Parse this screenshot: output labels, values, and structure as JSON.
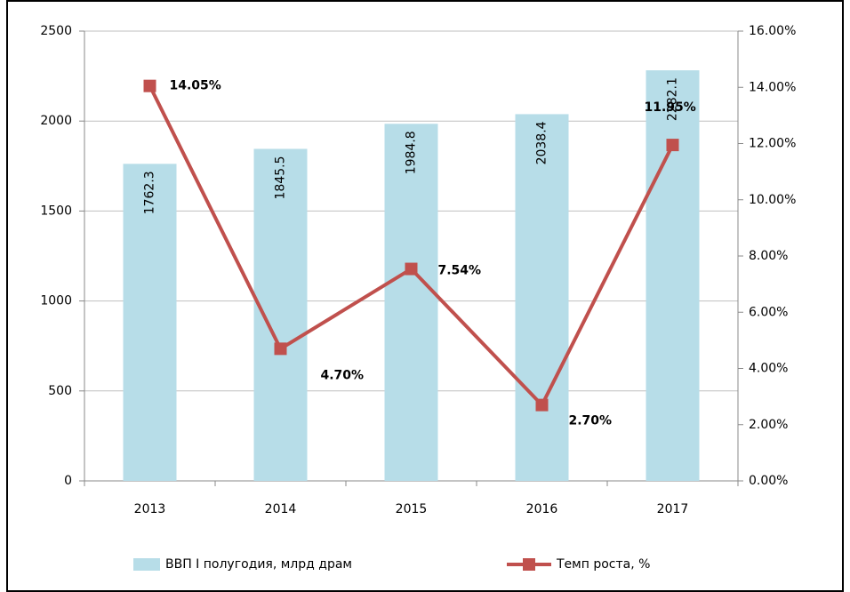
{
  "chart_data": {
    "type": "bar-line",
    "categories": [
      "2013",
      "2014",
      "2015",
      "2016",
      "2017"
    ],
    "series": [
      {
        "name": "ВВП I полугодия, млрд драм",
        "type": "bar",
        "color": "#b7dde8",
        "values": [
          1762.3,
          1845.5,
          1984.8,
          2038.4,
          2282.1
        ]
      },
      {
        "name": "Темп роста, %",
        "type": "line",
        "axis": "y2",
        "color": "#c0504d",
        "values": [
          14.05,
          4.7,
          7.54,
          2.7,
          11.95
        ],
        "value_labels": [
          "14.05%",
          "4.70%",
          "7.54%",
          "2.70%",
          "11.95%"
        ]
      }
    ],
    "ylim": [
      0,
      2500
    ],
    "yticks": [
      0,
      500,
      1000,
      1500,
      2000,
      2500
    ],
    "y2lim": [
      0,
      16
    ],
    "y2ticks": [
      {
        "value": 0,
        "label": "0.00%"
      },
      {
        "value": 2,
        "label": "2.00%"
      },
      {
        "value": 4,
        "label": "4.00%"
      },
      {
        "value": 6,
        "label": "6.00%"
      },
      {
        "value": 8,
        "label": "8.00%"
      },
      {
        "value": 10,
        "label": "10.00%"
      },
      {
        "value": 12,
        "label": "12.00%"
      },
      {
        "value": 14,
        "label": "14.00%"
      },
      {
        "value": 16,
        "label": "16.00%"
      }
    ],
    "grid": true,
    "legend": "bottom"
  }
}
